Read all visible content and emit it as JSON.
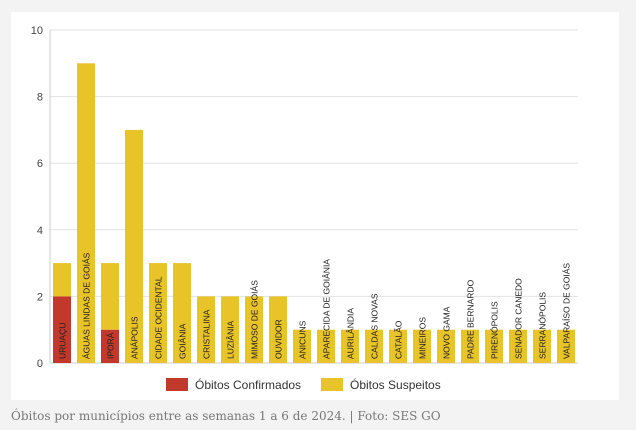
{
  "chart_data": {
    "type": "bar",
    "stacked": true,
    "categories": [
      "URUAÇU",
      "ÁGUAS LINDAS DE GOIÁS",
      "IPORÁ",
      "ANÁPOLIS",
      "CIDADE OCIDENTAL",
      "GOIÂNIA",
      "CRISTALINA",
      "LUZIÂNIA",
      "MIMOSO DE GOIÁS",
      "OUVIDOR",
      "ANICUNS",
      "APARECIDA DE GOIÂNIA",
      "AURILÂNDIA",
      "CALDAS NOVAS",
      "CATALÃO",
      "MINEIROS",
      "NOVO GAMA",
      "PADRE BERNARDO",
      "PIRENÓPOLIS",
      "SENADOR CANEDO",
      "SERRANÓPOLIS",
      "VALPARAÍSO DE GOIÁS"
    ],
    "series": [
      {
        "name": "Óbitos Confirmados",
        "color": "#c0392b",
        "values": [
          2,
          0,
          1,
          0,
          0,
          0,
          0,
          0,
          0,
          0,
          0,
          0,
          0,
          0,
          0,
          0,
          0,
          0,
          0,
          0,
          0,
          0
        ]
      },
      {
        "name": "Óbitos Suspeitos",
        "color": "#e8c32a",
        "values": [
          1,
          9,
          2,
          7,
          3,
          3,
          2,
          2,
          2,
          2,
          1,
          1,
          1,
          1,
          1,
          1,
          1,
          1,
          1,
          1,
          1,
          1
        ]
      }
    ],
    "yticks": [
      "0",
      "2",
      "4",
      "6",
      "8",
      "10"
    ],
    "ylim": [
      0,
      10
    ],
    "grid": true,
    "legend_position": "bottom-center"
  },
  "caption": "Óbitos por municípios entre as semanas 1 a 6 de 2024. | Foto: SES GO"
}
